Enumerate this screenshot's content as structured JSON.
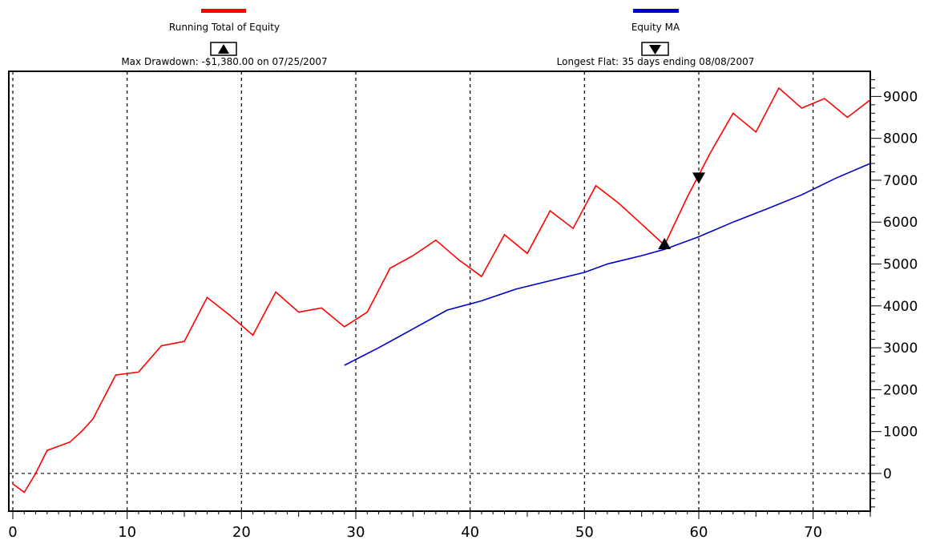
{
  "chart_data": {
    "type": "line",
    "legend": {
      "equity_label": "Running Total of Equity",
      "equity_color": "#ff0000",
      "ma_label": "Equity MA",
      "ma_color": "#0000cc",
      "drawdown_text": "Max Drawdown: -$1,380.00 on 07/25/2007",
      "flat_text": "Longest Flat: 35 days ending 08/08/2007",
      "drawdown_icon": "triangle-up-icon",
      "flat_icon": "triangle-down-icon"
    },
    "xlim": [
      0,
      75
    ],
    "ylim": [
      -900,
      9600
    ],
    "x_ticks": [
      0,
      10,
      20,
      30,
      40,
      50,
      60,
      70
    ],
    "y_ticks": [
      0,
      1000,
      2000,
      3000,
      4000,
      5000,
      6000,
      7000,
      8000,
      9000
    ],
    "grid": true,
    "y_axis_side": "right",
    "series": [
      {
        "name": "Running Total of Equity",
        "color": "#ff0000",
        "x": [
          0,
          1,
          2,
          3,
          5,
          6,
          7,
          9,
          11,
          13,
          15,
          17,
          19,
          21,
          23,
          25,
          27,
          29,
          31,
          33,
          35,
          37,
          39,
          41,
          43,
          45,
          47,
          49,
          51,
          53,
          55,
          57,
          59,
          61,
          63,
          65,
          67,
          69,
          71,
          73,
          75
        ],
        "values": [
          -250,
          -450,
          0,
          550,
          750,
          1000,
          1300,
          2350,
          2420,
          3050,
          3150,
          4200,
          3770,
          3300,
          4330,
          3850,
          3950,
          3500,
          3850,
          4900,
          5200,
          5570,
          5100,
          4700,
          5700,
          5250,
          6270,
          5850,
          6870,
          6450,
          5950,
          5450,
          6600,
          7650,
          8600,
          8150,
          9200,
          8720,
          8950,
          8500,
          8920
        ]
      },
      {
        "name": "Equity MA",
        "color": "#0000cc",
        "x": [
          29,
          32,
          35,
          38,
          41,
          44,
          47,
          50,
          52,
          55,
          57,
          60,
          63,
          66,
          69,
          72,
          75
        ],
        "values": [
          2580,
          3000,
          3450,
          3900,
          4120,
          4400,
          4600,
          4800,
          5000,
          5200,
          5350,
          5650,
          6000,
          6320,
          6650,
          7050,
          7400
        ]
      }
    ],
    "markers": [
      {
        "type": "drawdown",
        "x": 57,
        "y": 5450
      },
      {
        "type": "flat",
        "x": 60,
        "y": 7050
      }
    ],
    "zero_line": 0
  }
}
